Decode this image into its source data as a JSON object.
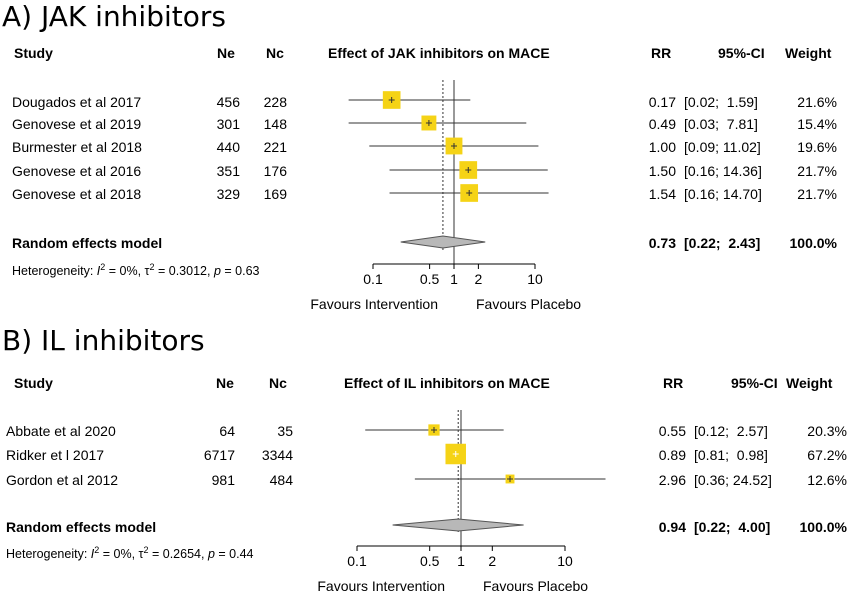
{
  "chart_data": [
    {
      "type": "forest",
      "title": "A) JAK inhibitors",
      "headers": {
        "study": "Study",
        "ne": "Ne",
        "nc": "Nc",
        "effect": "Effect of JAK inhibitors on MACE",
        "rr": "RR",
        "ci": "95%-CI",
        "weight": "Weight"
      },
      "studies": [
        {
          "name": "Dougados et al 2017",
          "ne": "456",
          "nc": "228",
          "rr": 0.17,
          "lo": 0.02,
          "hi": 1.59,
          "rr_text": "0.17",
          "ci_text": "[0.02;  1.59]",
          "weight": "21.6%"
        },
        {
          "name": "Genovese et al 2019",
          "ne": "301",
          "nc": "148",
          "rr": 0.49,
          "lo": 0.03,
          "hi": 7.81,
          "rr_text": "0.49",
          "ci_text": "[0.03;  7.81]",
          "weight": "15.4%"
        },
        {
          "name": "Burmester et al 2018",
          "ne": "440",
          "nc": "221",
          "rr": 1.0,
          "lo": 0.09,
          "hi": 11.02,
          "rr_text": "1.00",
          "ci_text": "[0.09; 11.02]",
          "weight": "19.6%"
        },
        {
          "name": "Genovese et al 2016",
          "ne": "351",
          "nc": "176",
          "rr": 1.5,
          "lo": 0.16,
          "hi": 14.36,
          "rr_text": "1.50",
          "ci_text": "[0.16; 14.36]",
          "weight": "21.7%"
        },
        {
          "name": "Genovese et al 2018",
          "ne": "329",
          "nc": "169",
          "rr": 1.54,
          "lo": 0.16,
          "hi": 14.7,
          "rr_text": "1.54",
          "ci_text": "[0.16; 14.70]",
          "weight": "21.7%"
        }
      ],
      "summary": {
        "label": "Random effects model",
        "rr": 0.73,
        "lo": 0.22,
        "hi": 2.43,
        "rr_text": "0.73",
        "ci_text": "[0.22;  2.43]",
        "weight": "100.0%"
      },
      "heterogeneity": {
        "prefix": "Heterogeneity: ",
        "i2_label": "I",
        "i2_value": " = 0%, ",
        "tau2_label": "τ",
        "tau2_value": " = 0.3012, ",
        "p_label": "p",
        "p_value": " = 0.63"
      },
      "x_scale": "log",
      "xlim": [
        0.05,
        20
      ],
      "x_ticks": [
        0.1,
        0.5,
        1,
        2,
        10
      ],
      "x_tick_labels": [
        "0.1",
        "0.5",
        "1",
        "2",
        "10"
      ],
      "favours_left": "Favours Intervention",
      "favours_right": "Favours Placebo",
      "colors": {
        "square": "#f5d316",
        "diamond": "#b8b8b8",
        "line": "#333333"
      }
    },
    {
      "type": "forest",
      "title": "B) IL inhibitors",
      "headers": {
        "study": "Study",
        "ne": "Ne",
        "nc": "Nc",
        "effect": "Effect of IL inhibitors on MACE",
        "rr": "RR",
        "ci": "95%-CI",
        "weight": "Weight"
      },
      "studies": [
        {
          "name": "Abbate et al 2020",
          "ne": "64",
          "nc": "35",
          "rr": 0.55,
          "lo": 0.12,
          "hi": 2.57,
          "rr_text": "0.55",
          "ci_text": "[0.12;  2.57]",
          "weight": "20.3%"
        },
        {
          "name": "Ridker et l 2017",
          "ne": "6717",
          "nc": "3344",
          "rr": 0.89,
          "lo": 0.81,
          "hi": 0.98,
          "rr_text": "0.89",
          "ci_text": "[0.81;  0.98]",
          "weight": "67.2%"
        },
        {
          "name": "Gordon et al 2012",
          "ne": "981",
          "nc": "484",
          "rr": 2.96,
          "lo": 0.36,
          "hi": 24.52,
          "rr_text": "2.96",
          "ci_text": "[0.36; 24.52]",
          "weight": "12.6%"
        }
      ],
      "summary": {
        "label": "Random effects model",
        "rr": 0.94,
        "lo": 0.22,
        "hi": 4.0,
        "rr_text": "0.94",
        "ci_text": "[0.22;  4.00]",
        "weight": "100.0%"
      },
      "heterogeneity": {
        "prefix": "Heterogeneity: ",
        "i2_label": "I",
        "i2_value": " = 0%, ",
        "tau2_label": "τ",
        "tau2_value": " = 0.2654, ",
        "p_label": "p",
        "p_value": " = 0.44"
      },
      "x_scale": "log",
      "xlim": [
        0.05,
        40
      ],
      "x_ticks": [
        0.1,
        0.5,
        1,
        2,
        10
      ],
      "x_tick_labels": [
        "0.1",
        "0.5",
        "1",
        "2",
        "10"
      ],
      "favours_left": "Favours Intervention",
      "favours_right": "Favours Placebo",
      "colors": {
        "square": "#f5d316",
        "diamond": "#b8b8b8",
        "line": "#333333"
      }
    }
  ]
}
